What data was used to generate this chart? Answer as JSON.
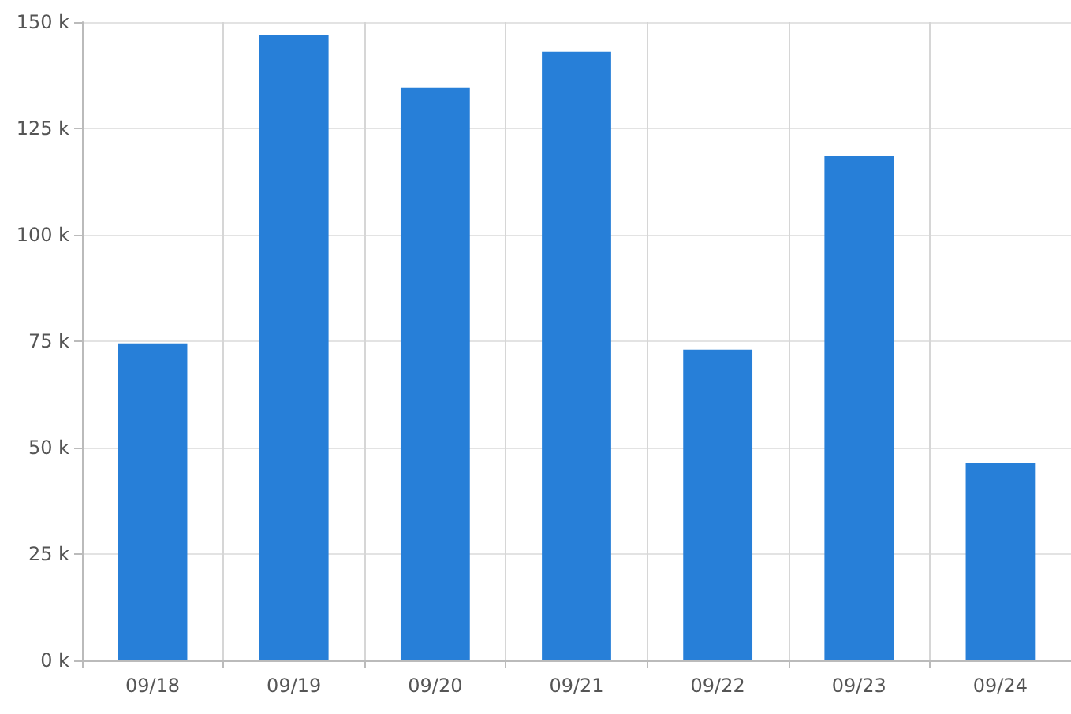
{
  "chart_data": {
    "type": "bar",
    "categories": [
      "09/18",
      "09/19",
      "09/20",
      "09/21",
      "09/22",
      "09/23",
      "09/24"
    ],
    "values": [
      74500,
      147000,
      134500,
      143000,
      73000,
      118500,
      46300
    ],
    "color": "#277fd8",
    "ylim": [
      0,
      150000
    ],
    "yticks": [
      {
        "value": 0,
        "label": "0 k"
      },
      {
        "value": 25000,
        "label": "25 k"
      },
      {
        "value": 50000,
        "label": "50 k"
      },
      {
        "value": 75000,
        "label": "75 k"
      },
      {
        "value": 100000,
        "label": "100 k"
      },
      {
        "value": 125000,
        "label": "125 k"
      },
      {
        "value": 150000,
        "label": "150 k"
      }
    ],
    "grid": true
  }
}
